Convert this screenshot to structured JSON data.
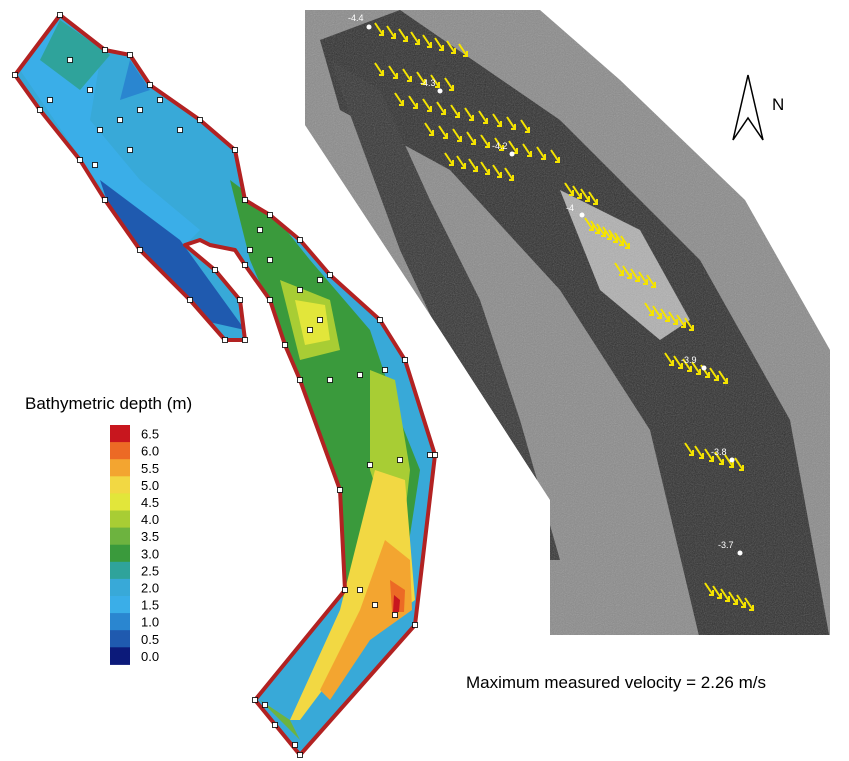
{
  "legend": {
    "title": "Bathymetric depth (m)",
    "items": [
      {
        "label": "6.5",
        "color": "#c8161e"
      },
      {
        "label": "6.0",
        "color": "#ec6a25"
      },
      {
        "label": "5.5",
        "color": "#f3a530"
      },
      {
        "label": "5.0",
        "color": "#f2d843"
      },
      {
        "label": "4.5",
        "color": "#e2e63a"
      },
      {
        "label": "4.0",
        "color": "#a8cd34"
      },
      {
        "label": "3.5",
        "color": "#6db33f"
      },
      {
        "label": "3.0",
        "color": "#3a9a3c"
      },
      {
        "label": "2.5",
        "color": "#2fa39b"
      },
      {
        "label": "2.0",
        "color": "#38a9d8"
      },
      {
        "label": "1.5",
        "color": "#3aaee8"
      },
      {
        "label": "1.0",
        "color": "#2a86d0"
      },
      {
        "label": "0.5",
        "color": "#1f5aaf"
      },
      {
        "label": "0.0",
        "color": "#0c1a7a"
      }
    ]
  },
  "photo": {
    "north": "N",
    "markers": [
      "-4.4",
      "-4.3",
      "-4.2",
      "-4",
      "-3.9",
      "-3.8",
      "-3.7"
    ],
    "caption": "Maximum measured velocity = 2.26 m/s"
  }
}
